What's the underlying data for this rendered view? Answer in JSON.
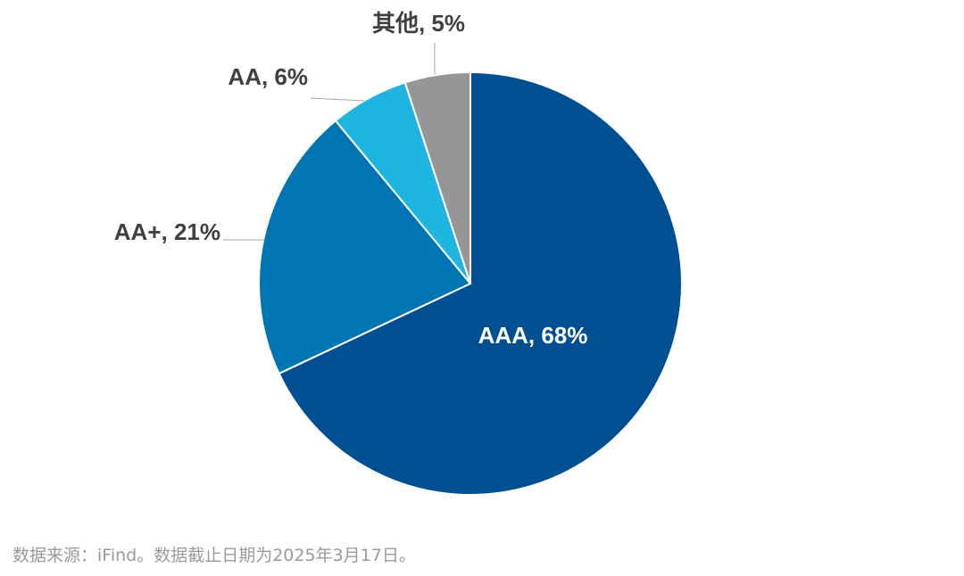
{
  "chart_data": {
    "type": "pie",
    "slices": [
      {
        "label": "AAA, 68%",
        "name": "AAA",
        "value": 68,
        "color": "#004F93"
      },
      {
        "label": "AA+, 21%",
        "name": "AA+",
        "value": 21,
        "color": "#0075B3"
      },
      {
        "label": "AA, 6%",
        "name": "AA",
        "value": 6,
        "color": "#1EB6E1"
      },
      {
        "label": "其他, 5%",
        "name": "其他",
        "value": 5,
        "color": "#969696"
      }
    ]
  },
  "footer": {
    "source": "数据来源：iFind。数据截止日期为2025年3月17日。"
  }
}
